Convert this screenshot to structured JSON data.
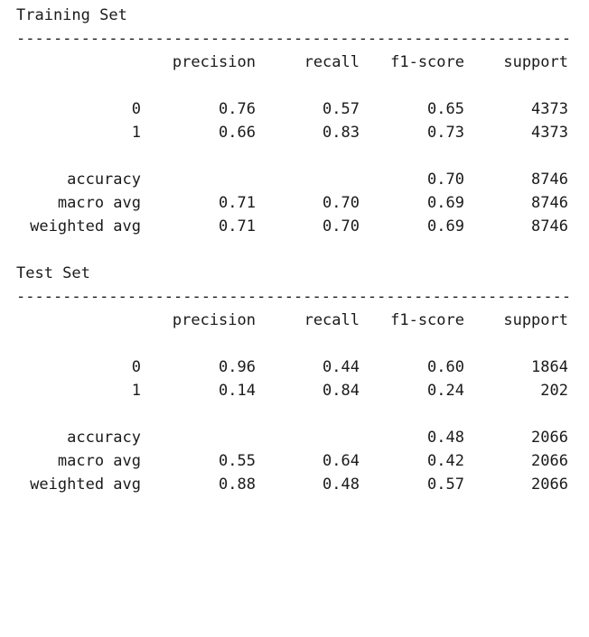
{
  "columns": [
    "precision",
    "recall",
    "f1-score",
    "support"
  ],
  "rule": "------------------------------------------------------------",
  "sections": [
    {
      "title": "Training Set",
      "classes": [
        {
          "label": "0",
          "precision": "0.76",
          "recall": "0.57",
          "f1": "0.65",
          "support": "4373"
        },
        {
          "label": "1",
          "precision": "0.66",
          "recall": "0.83",
          "f1": "0.73",
          "support": "4373"
        }
      ],
      "accuracy": {
        "label": "accuracy",
        "f1": "0.70",
        "support": "8746"
      },
      "macro": {
        "label": "macro avg",
        "precision": "0.71",
        "recall": "0.70",
        "f1": "0.69",
        "support": "8746"
      },
      "weighted": {
        "label": "weighted avg",
        "precision": "0.71",
        "recall": "0.70",
        "f1": "0.69",
        "support": "8746"
      }
    },
    {
      "title": "Test Set",
      "classes": [
        {
          "label": "0",
          "precision": "0.96",
          "recall": "0.44",
          "f1": "0.60",
          "support": "1864"
        },
        {
          "label": "1",
          "precision": "0.14",
          "recall": "0.84",
          "f1": "0.24",
          "support": "202"
        }
      ],
      "accuracy": {
        "label": "accuracy",
        "f1": "0.48",
        "support": "2066"
      },
      "macro": {
        "label": "macro avg",
        "precision": "0.55",
        "recall": "0.64",
        "f1": "0.42",
        "support": "2066"
      },
      "weighted": {
        "label": "weighted avg",
        "precision": "0.88",
        "recall": "0.48",
        "f1": "0.57",
        "support": "2066"
      }
    }
  ]
}
